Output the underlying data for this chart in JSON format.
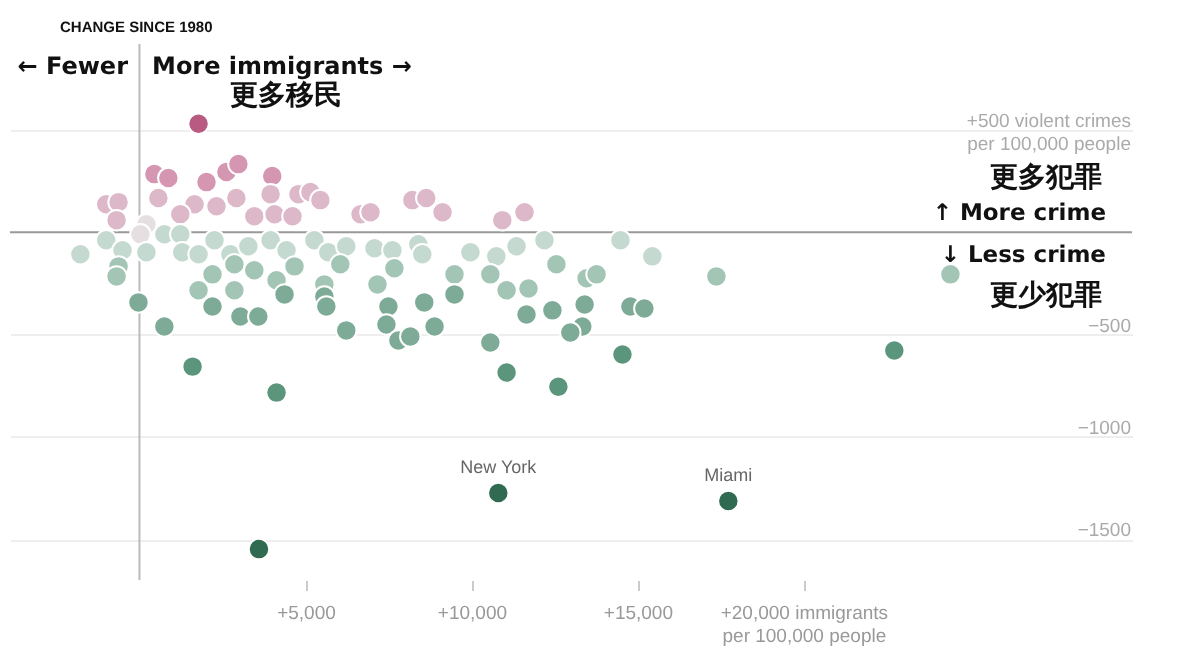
{
  "chart_data": {
    "type": "scatter",
    "title": "CHANGE SINCE 1980",
    "annotations": [
      "← Fewer",
      "More immigrants →",
      "更多移民",
      "更多犯罪",
      "↑ More crime",
      "↓ Less crime",
      "更少犯罪",
      {
        "text": "New York",
        "x": 10810,
        "y": -1275
      },
      {
        "text": "Miami",
        "x": 17740,
        "y": -1314
      }
    ],
    "series": [
      {
        "color": "#b85a82",
        "x": [
          1780
        ],
        "values": [
          530
        ]
      },
      {
        "color": "#d596b2",
        "x": [
          450,
          870,
          2020,
          2620,
          2980,
          4000
        ],
        "values": [
          284,
          265,
          245,
          294,
          333,
          275
        ]
      },
      {
        "color": "#ddb8c9",
        "x": [
          4790,
          5150,
          5450,
          3950,
          -1000,
          -630,
          570,
          1660,
          2320,
          2920,
          1230,
          3460,
          4070,
          4610,
          -690,
          6660,
          6960,
          8220,
          8640,
          9130,
          10930,
          11600
        ],
        "values": [
          186,
          196,
          157,
          186,
          137,
          147,
          167,
          137,
          127,
          167,
          88,
          78,
          88,
          78,
          59,
          88,
          98,
          157,
          167,
          98,
          59,
          98
        ]
      },
      {
        "color": "#e6dfe2",
        "x": [
          210,
          30
        ],
        "values": [
          39,
          -10
        ]
      },
      {
        "color": "#c4d9cf",
        "x": [
          -1780,
          -1000,
          -510,
          210,
          750,
          1230,
          1290,
          1780,
          2260,
          2740,
          3280,
          3950,
          4430,
          5270,
          5690,
          6230,
          7080,
          7620,
          8400,
          8520,
          9970,
          10750,
          11360,
          12200,
          14490,
          15450
        ],
        "values": [
          -108,
          -39,
          -88,
          -98,
          -10,
          -10,
          -98,
          -108,
          -39,
          -108,
          -69,
          -39,
          -88,
          -39,
          -98,
          -69,
          -78,
          -88,
          -59,
          -108,
          -98,
          -118,
          -69,
          -39,
          -39,
          -118
        ]
      },
      {
        "color": "#a3c5b6",
        "x": [
          12560,
          -630,
          -690,
          2200,
          2860,
          3460,
          4130,
          4670,
          5570,
          6050,
          7170,
          7680,
          9490,
          10570,
          11060,
          11720,
          13470,
          17380,
          24430,
          13770,
          1780,
          2860
        ],
        "values": [
          -157,
          -167,
          -216,
          -206,
          -157,
          -186,
          -235,
          -167,
          -255,
          -157,
          -255,
          -176,
          -206,
          -206,
          -284,
          -275,
          -225,
          -216,
          -206,
          -206,
          -284,
          -284
        ]
      },
      {
        "color": "#7dab97",
        "x": [
          -30,
          2200,
          3040,
          3580,
          4370,
          5570,
          5630,
          6230,
          7500,
          8580,
          8890,
          11660,
          12440,
          13340,
          750,
          9490,
          7440,
          7800,
          8160,
          10570,
          12980,
          13410,
          14790,
          15210
        ],
        "values": [
          -343,
          -363,
          -412,
          -412,
          -304,
          -314,
          -363,
          -480,
          -363,
          -343,
          -461,
          -402,
          -382,
          -461,
          -461,
          -304,
          -451,
          -529,
          -510,
          -539,
          -490,
          -353,
          -363,
          -373
        ]
      },
      {
        "color": "#5b957c",
        "x": [
          1600,
          4130,
          11060,
          12620,
          14550,
          22740
        ],
        "values": [
          -657,
          -784,
          -686,
          -755,
          -598,
          -578
        ]
      },
      {
        "color": "#2f6a51",
        "x": [
          10810,
          17740,
          3600
        ],
        "values": [
          -1275,
          -1314,
          -1549
        ]
      }
    ],
    "xlim": [
      -3900,
      29900
    ],
    "ylim": [
      -1700,
      920
    ],
    "xticks": [
      {
        "value": 5000,
        "label": "+5,000"
      },
      {
        "value": 10000,
        "label": "+10,000"
      },
      {
        "value": 15000,
        "label": "+15,000"
      },
      {
        "value": 20000,
        "label": "+20,000 immigrants\nper 100,000 people"
      }
    ],
    "yticks": [
      {
        "value": 500,
        "label": "+500 violent crimes\nper 100,000 people"
      },
      -500,
      -1000,
      -1500
    ],
    "ref_lines": [
      {
        "axis": "y",
        "value": 0,
        "color": "#999999"
      },
      {
        "axis": "x",
        "value": 0,
        "color": "#bbbbbb"
      }
    ],
    "grid": "y",
    "legend": false,
    "marker": "circle"
  }
}
